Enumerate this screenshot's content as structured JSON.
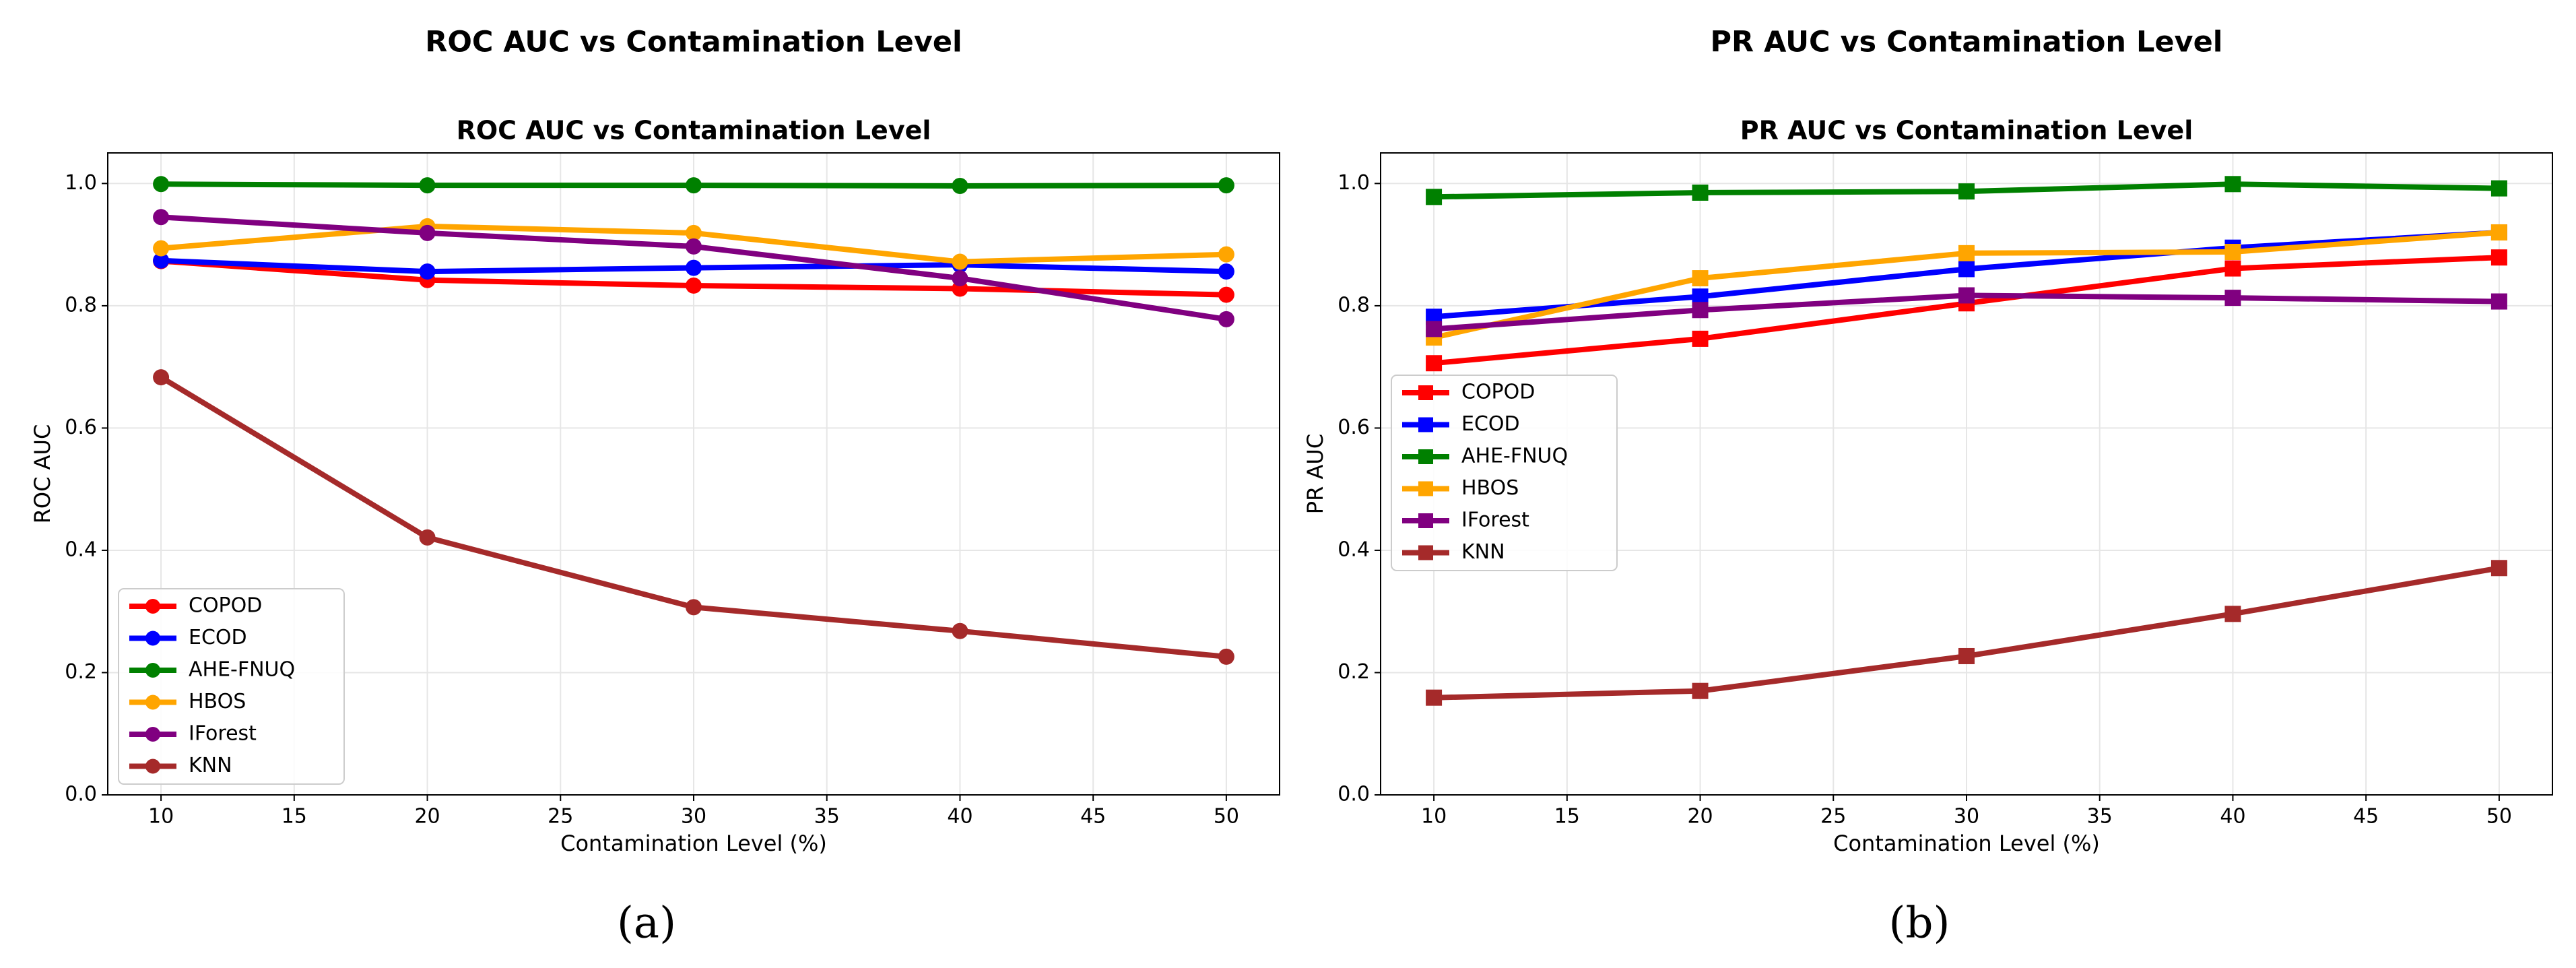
{
  "figure": {
    "captions": [
      "(a)",
      "(b)"
    ]
  },
  "colors": {
    "COPOD": "#ff0000",
    "ECOD": "#0000ff",
    "AHE-FNUQ": "#008000",
    "HBOS": "#ffa500",
    "IForest": "#800080",
    "KNN": "#a52a2a"
  },
  "chart_data": [
    {
      "type": "line",
      "suptitle": "ROC AUC vs Contamination Level",
      "title": "ROC AUC vs Contamination Level",
      "xlabel": "Contamination Level (%)",
      "ylabel": "ROC AUC",
      "x": [
        10,
        20,
        30,
        40,
        50
      ],
      "xlim": [
        8,
        52
      ],
      "ylim": [
        0.0,
        1.05
      ],
      "xticks": [
        10,
        15,
        20,
        25,
        30,
        35,
        40,
        45,
        50
      ],
      "yticks": [
        "0.0",
        "0.2",
        "0.4",
        "0.6",
        "0.8",
        "1.0"
      ],
      "grid": true,
      "marker": "circle",
      "legend_position": "lower-left",
      "series": [
        {
          "name": "COPOD",
          "values": [
            0.873,
            0.842,
            0.833,
            0.828,
            0.818
          ]
        },
        {
          "name": "ECOD",
          "values": [
            0.874,
            0.856,
            0.862,
            0.867,
            0.856
          ]
        },
        {
          "name": "AHE-FNUQ",
          "values": [
            0.999,
            0.997,
            0.997,
            0.996,
            0.997
          ]
        },
        {
          "name": "HBOS",
          "values": [
            0.894,
            0.93,
            0.919,
            0.872,
            0.884
          ]
        },
        {
          "name": "IForest",
          "values": [
            0.945,
            0.919,
            0.897,
            0.845,
            0.778
          ]
        },
        {
          "name": "KNN",
          "values": [
            0.683,
            0.421,
            0.307,
            0.268,
            0.226
          ]
        }
      ]
    },
    {
      "type": "line",
      "suptitle": "PR AUC vs Contamination Level",
      "title": "PR AUC vs Contamination Level",
      "xlabel": "Contamination Level (%)",
      "ylabel": "PR AUC",
      "x": [
        10,
        20,
        30,
        40,
        50
      ],
      "xlim": [
        8,
        52
      ],
      "ylim": [
        0.0,
        1.05
      ],
      "xticks": [
        10,
        15,
        20,
        25,
        30,
        35,
        40,
        45,
        50
      ],
      "yticks": [
        "0.0",
        "0.2",
        "0.4",
        "0.6",
        "0.8",
        "1.0"
      ],
      "grid": true,
      "marker": "square",
      "legend_position": "center-left",
      "series": [
        {
          "name": "COPOD",
          "values": [
            0.706,
            0.746,
            0.804,
            0.861,
            0.879
          ]
        },
        {
          "name": "ECOD",
          "values": [
            0.782,
            0.815,
            0.86,
            0.895,
            0.92
          ]
        },
        {
          "name": "AHE-FNUQ",
          "values": [
            0.978,
            0.985,
            0.987,
            0.999,
            0.992
          ]
        },
        {
          "name": "HBOS",
          "values": [
            0.748,
            0.845,
            0.886,
            0.888,
            0.92
          ]
        },
        {
          "name": "IForest",
          "values": [
            0.762,
            0.793,
            0.817,
            0.813,
            0.807
          ]
        },
        {
          "name": "KNN",
          "values": [
            0.159,
            0.17,
            0.227,
            0.296,
            0.371
          ]
        }
      ]
    }
  ]
}
